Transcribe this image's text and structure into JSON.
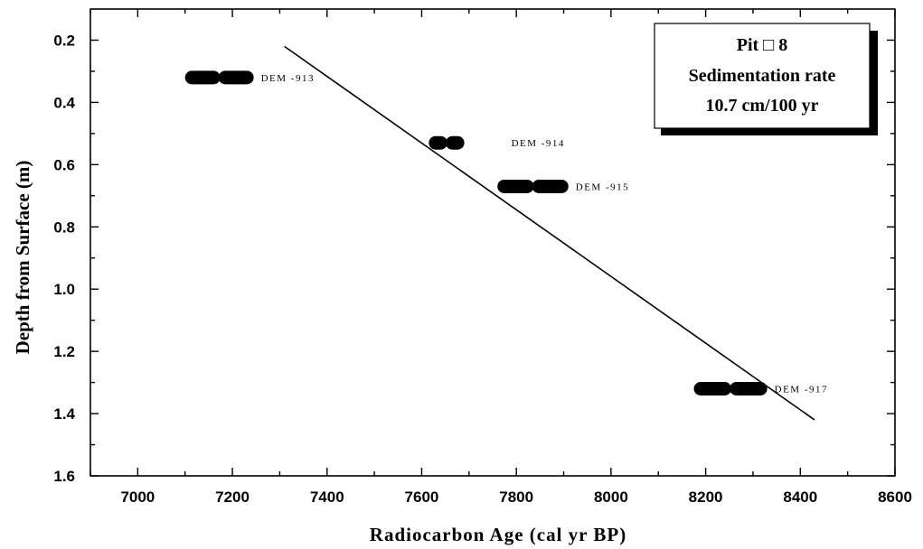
{
  "chart_data": {
    "type": "scatter",
    "title": "",
    "xlabel": "Radiocarbon Age (cal yr BP)",
    "ylabel": "Depth from Surface (m)",
    "xlim": [
      6900,
      8600
    ],
    "ylim": [
      0.1,
      1.6
    ],
    "y_inverted": true,
    "x_ticks": [
      7000,
      7200,
      7400,
      7600,
      7800,
      8000,
      8200,
      8400,
      8600
    ],
    "x_tick_labels": [
      "7000",
      "7200",
      "7400",
      "7600",
      "7800",
      "8000",
      "8200",
      "8400",
      "8600"
    ],
    "y_ticks": [
      0.2,
      0.4,
      0.6,
      0.8,
      1.0,
      1.2,
      1.4,
      1.6
    ],
    "y_tick_labels": [
      "0.2",
      "0.4",
      "0.6",
      "0.8",
      "1.0",
      "1.2",
      "1.4",
      "1.6"
    ],
    "samples": [
      {
        "label": "DEM -913",
        "depth": 0.32,
        "age_min": 7100,
        "age_max": 7245
      },
      {
        "label": "DEM -914",
        "depth": 0.53,
        "age_min": 7615,
        "age_max": 7690
      },
      {
        "label": "DEM -915",
        "depth": 0.67,
        "age_min": 7760,
        "age_max": 7910
      },
      {
        "label": "DEM -917",
        "depth": 1.32,
        "age_min": 8175,
        "age_max": 8330
      }
    ],
    "regression_line": {
      "x": [
        7310,
        8430
      ],
      "y": [
        0.22,
        1.42
      ]
    },
    "legend_box": {
      "lines": [
        "Pit □ 8",
        "Sedimentation rate",
        "10.7 cm/100 yr"
      ],
      "placement": "top-right"
    }
  }
}
